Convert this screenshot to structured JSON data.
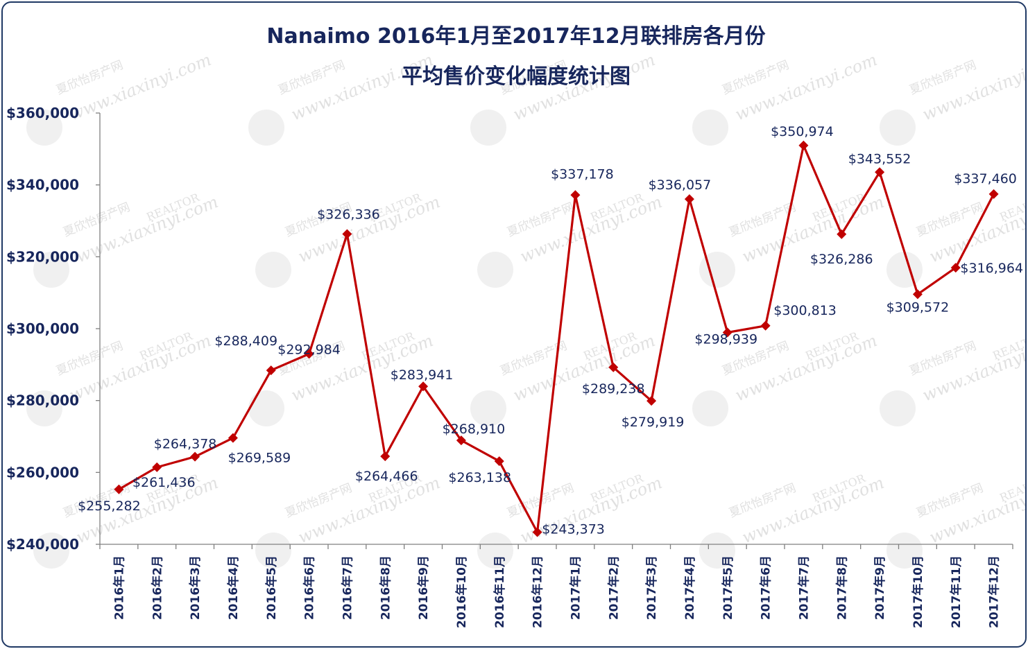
{
  "chart_data": {
    "type": "line",
    "title_line1": "Nanaimo 2016年1月至2017年12月联排房各月份",
    "title_line2": "平均售价变化幅度统计图",
    "xlabel": "",
    "ylabel": "",
    "ylim": [
      240000,
      360000
    ],
    "yticks": [
      "$240,000",
      "$260,000",
      "$280,000",
      "$300,000",
      "$320,000",
      "$340,000",
      "$360,000"
    ],
    "ytick_values": [
      240000,
      260000,
      280000,
      300000,
      320000,
      340000,
      360000
    ],
    "categories": [
      "2016年1月",
      "2016年2月",
      "2016年3月",
      "2016年4月",
      "2016年5月",
      "2016年6月",
      "2016年7月",
      "2016年8月",
      "2016年9月",
      "2016年10月",
      "2016年11月",
      "2016年12月",
      "2017年1月",
      "2017年2月",
      "2017年3月",
      "2017年4月",
      "2017年5月",
      "2017年6月",
      "2017年7月",
      "2017年8月",
      "2017年9月",
      "2017年10月",
      "2017年11月",
      "2017年12月"
    ],
    "series": [
      {
        "values": [
          255282,
          261436,
          264378,
          269589,
          288409,
          292984,
          326336,
          264466,
          283941,
          268910,
          263138,
          243373,
          337178,
          289238,
          279919,
          336057,
          298939,
          300813,
          350974,
          326286,
          343552,
          309572,
          316964,
          337460
        ],
        "labels": [
          "$255,282",
          "$261,436",
          "$264,378",
          "$269,589",
          "$288,409",
          "$292,984",
          "$326,336",
          "$264,466",
          "$283,941",
          "$268,910",
          "$263,138",
          "$243,373",
          "$337,178",
          "$289,238",
          "$279,919",
          "$336,057",
          "$298,939",
          "$300,813",
          "$350,974",
          "$326,286",
          "$343,552",
          "$309,572",
          "$316,964",
          "$337,460"
        ]
      }
    ],
    "line_color": "#c00000",
    "text_color": "#17265c",
    "grid": false,
    "legend": "none"
  },
  "watermark": {
    "site": "www.xiaxinyi.com",
    "name": "夏欣怡房产网",
    "tag": "REALTOR"
  }
}
